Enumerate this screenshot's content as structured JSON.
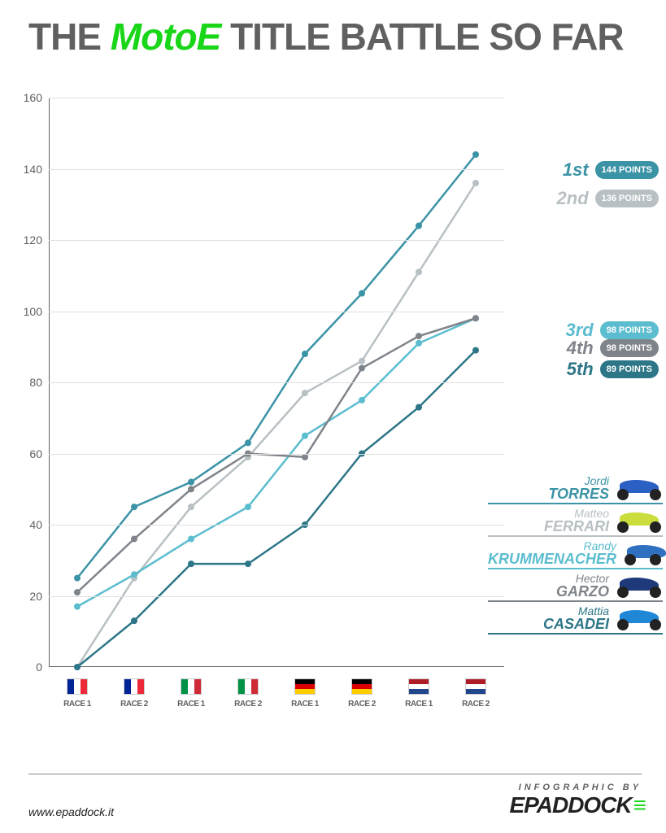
{
  "title": {
    "pre": "THE ",
    "highlight": "MotoE",
    "post": " TITLE BATTLE SO FAR"
  },
  "colors": {
    "title_gray": "#606060",
    "title_green": "#19d619",
    "grid": "#e0e0e0",
    "axis": "#606060",
    "bg": "#ffffff"
  },
  "chart": {
    "type": "line",
    "ylim": [
      0,
      160
    ],
    "ytick_step": 20,
    "yticks": [
      0,
      20,
      40,
      60,
      80,
      100,
      120,
      140,
      160
    ],
    "x_labels": [
      "RACE 1",
      "RACE 2",
      "RACE 1",
      "RACE 2",
      "RACE 1",
      "RACE 2",
      "RACE 1",
      "RACE 2"
    ],
    "x_flags": [
      {
        "stripes": [
          "#002395",
          "#ffffff",
          "#ed2939"
        ],
        "dir": "horiz"
      },
      {
        "stripes": [
          "#002395",
          "#ffffff",
          "#ed2939"
        ],
        "dir": "horiz"
      },
      {
        "stripes": [
          "#009246",
          "#ffffff",
          "#ce2b37"
        ],
        "dir": "horiz"
      },
      {
        "stripes": [
          "#009246",
          "#ffffff",
          "#ce2b37"
        ],
        "dir": "horiz"
      },
      {
        "stripes": [
          "#000000",
          "#dd0000",
          "#ffce00"
        ],
        "dir": "vert"
      },
      {
        "stripes": [
          "#000000",
          "#dd0000",
          "#ffce00"
        ],
        "dir": "vert"
      },
      {
        "stripes": [
          "#ae1c28",
          "#ffffff",
          "#21468b"
        ],
        "dir": "vert"
      },
      {
        "stripes": [
          "#ae1c28",
          "#ffffff",
          "#21468b"
        ],
        "dir": "vert"
      }
    ],
    "line_width": 2.5,
    "marker_radius": 4,
    "series": [
      {
        "key": "torres",
        "color": "#3b93a6",
        "values": [
          25,
          45,
          52,
          63,
          88,
          105,
          124,
          144
        ]
      },
      {
        "key": "ferrari",
        "color": "#b8c0c4",
        "values": [
          0,
          25,
          45,
          59,
          77,
          86,
          111,
          136
        ]
      },
      {
        "key": "krummenacher",
        "color": "#5bbdcf",
        "values": [
          17,
          26,
          36,
          45,
          65,
          75,
          91,
          98
        ]
      },
      {
        "key": "garzo",
        "color": "#7f848a",
        "values": [
          21,
          36,
          50,
          60,
          59,
          84,
          93,
          98
        ]
      },
      {
        "key": "casadei",
        "color": "#2d7687",
        "values": [
          0,
          13,
          29,
          29,
          40,
          60,
          73,
          89
        ]
      }
    ]
  },
  "standings": [
    {
      "pos": "1st",
      "points": "144 POINTS",
      "color": "#3b93a6",
      "y_val": 144
    },
    {
      "pos": "2nd",
      "points": "136 POINTS",
      "color": "#b8c0c4",
      "y_val": 136
    },
    {
      "pos": "3rd",
      "points": "98 POINTS",
      "color": "#5bbdcf",
      "y_val": 99
    },
    {
      "pos": "4th",
      "points": "98 POINTS",
      "color": "#7f848a",
      "y_val": 94
    },
    {
      "pos": "5th",
      "points": "89 POINTS",
      "color": "#2d7687",
      "y_val": 88
    }
  ],
  "riders": [
    {
      "first": "Jordi",
      "last": "TORRES",
      "color": "#3b93a6",
      "bike_color": "#2a5fc4"
    },
    {
      "first": "Matteo",
      "last": "FERRARI",
      "color": "#b8c0c4",
      "bike_color": "#cadd3c"
    },
    {
      "first": "Randy",
      "last": "KRUMMENACHER",
      "color": "#5bbdcf",
      "bike_color": "#3070c0"
    },
    {
      "first": "Hector",
      "last": "GARZO",
      "color": "#7f848a",
      "bike_color": "#1e3a7a"
    },
    {
      "first": "Mattia",
      "last": "CASADEI",
      "color": "#2d7687",
      "bike_color": "#2087d6"
    }
  ],
  "footer": {
    "url": "www.epaddock.it",
    "credit_top": "INFOGRAPHIC BY",
    "logo_a": "EPADD",
    "logo_b": "OCK"
  }
}
